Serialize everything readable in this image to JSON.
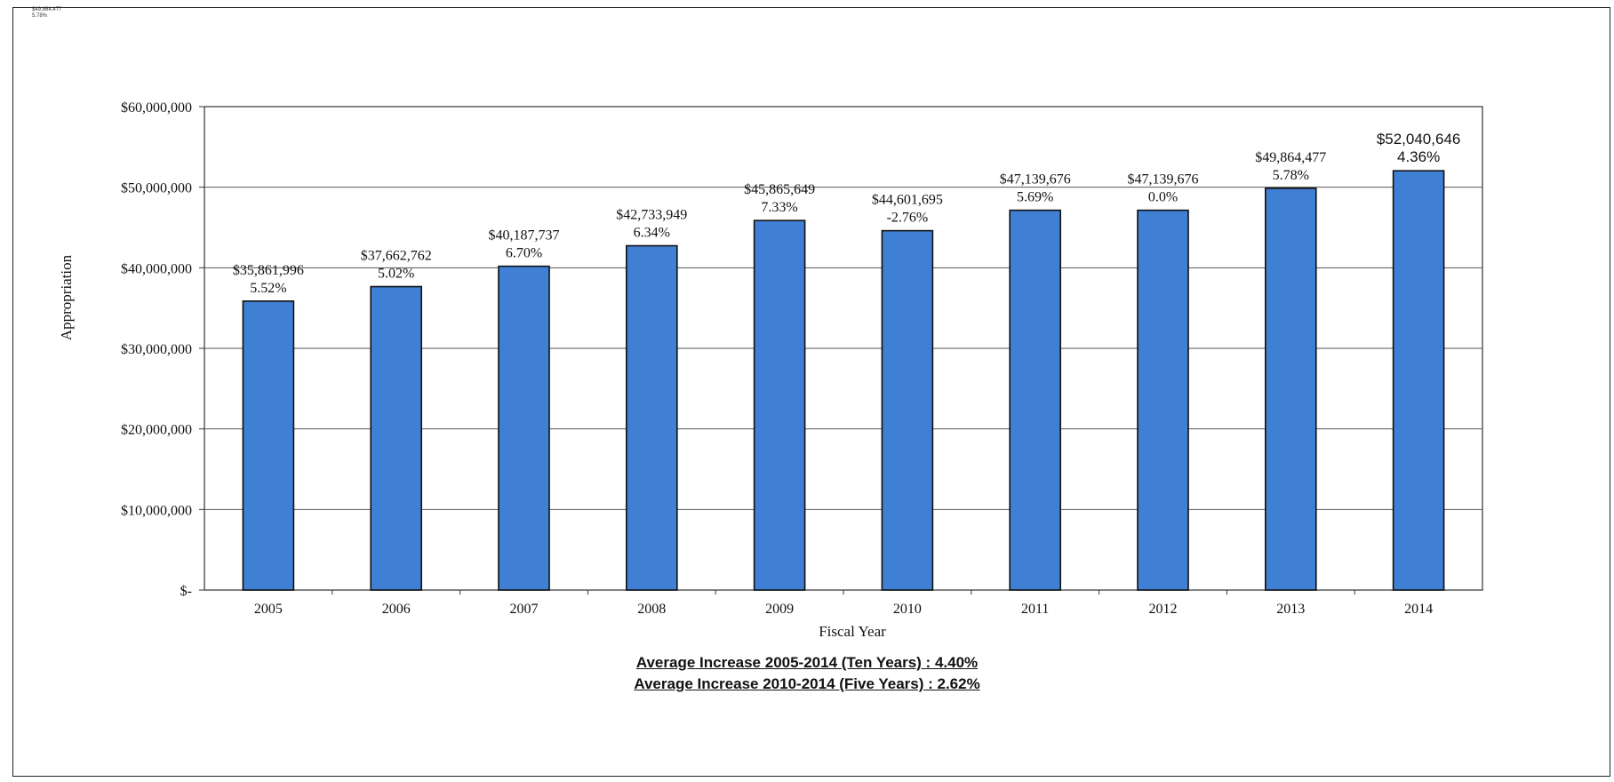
{
  "corner_note": [
    "$49,864,477",
    "5.78%"
  ],
  "chart_data": {
    "type": "bar",
    "xlabel": "Fiscal Year",
    "ylabel": "Appropriation",
    "ylim": [
      0,
      60000000
    ],
    "yticks": [
      0,
      10000000,
      20000000,
      30000000,
      40000000,
      50000000,
      60000000
    ],
    "ytick_labels": [
      "$-",
      "$10,000,000",
      "$20,000,000",
      "$30,000,000",
      "$40,000,000",
      "$50,000,000",
      "$60,000,000"
    ],
    "grid": true,
    "bar_color": "#3f7fd4",
    "categories": [
      "2005",
      "2006",
      "2007",
      "2008",
      "2009",
      "2010",
      "2011",
      "2012",
      "2013",
      "2014"
    ],
    "values": [
      35861996,
      37662762,
      40187737,
      42733949,
      45865649,
      44601695,
      47139676,
      47139676,
      49864477,
      52040646
    ],
    "value_labels": [
      "$35,861,996",
      "$37,662,762",
      "$40,187,737",
      "$42,733,949",
      "$45,865,649",
      "$44,601,695",
      "$47,139,676",
      "$47,139,676",
      "$49,864,477",
      "$52,040,646"
    ],
    "pct_labels": [
      "5.52%",
      "5.02%",
      "6.70%",
      "6.34%",
      "7.33%",
      "-2.76%",
      "5.69%",
      "0.0%",
      "5.78%",
      "4.36%"
    ]
  },
  "summary": {
    "line1": "Average Increase 2005-2014 (Ten Years) : 4.40%",
    "line2": "Average Increase 2010-2014 (Five Years) : 2.62%"
  }
}
